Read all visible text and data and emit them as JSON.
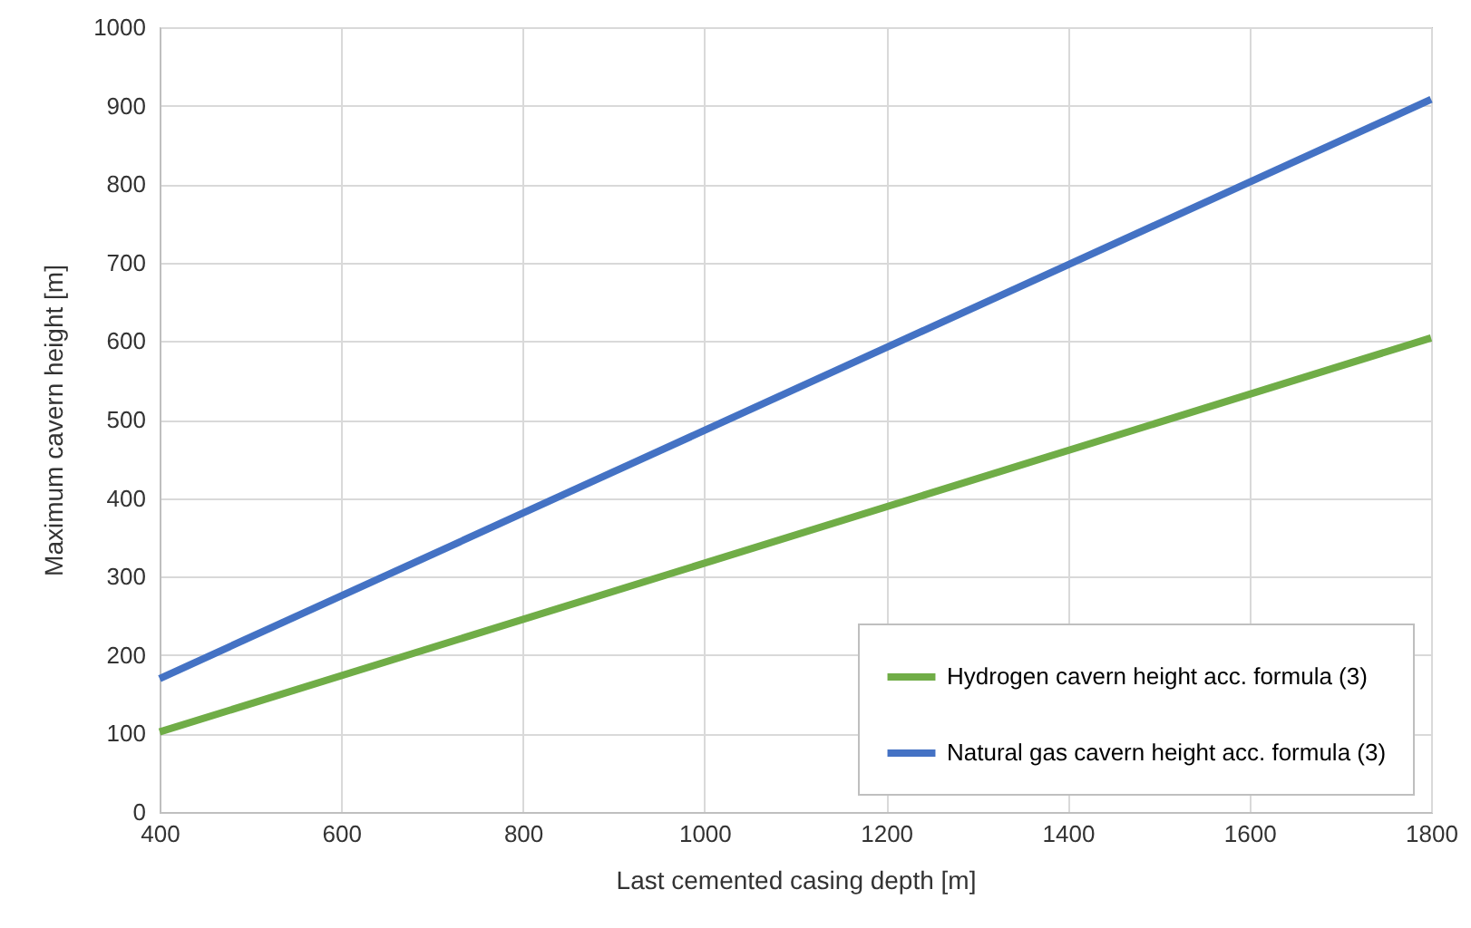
{
  "chart_data": {
    "type": "line",
    "xlabel": "Last cemented casing depth [m]",
    "ylabel": "Maximum cavern height [m]",
    "x": [
      400,
      1800
    ],
    "series": [
      {
        "name": "Hydrogen cavern height acc. formula (3)",
        "color": "#70ad47",
        "values": [
          102,
          604
        ]
      },
      {
        "name": "Natural gas cavern height acc. formula (3)",
        "color": "#4472c4",
        "values": [
          170,
          908
        ]
      }
    ],
    "xlim": [
      400,
      1800
    ],
    "xticks": [
      400,
      600,
      800,
      1000,
      1200,
      1400,
      1600,
      1800
    ],
    "ylim": [
      0,
      1000
    ],
    "yticks": [
      0,
      100,
      200,
      300,
      400,
      500,
      600,
      700,
      800,
      900,
      1000
    ],
    "grid": true,
    "legend": "bottom right",
    "marker": "none",
    "line_style": "solid"
  }
}
